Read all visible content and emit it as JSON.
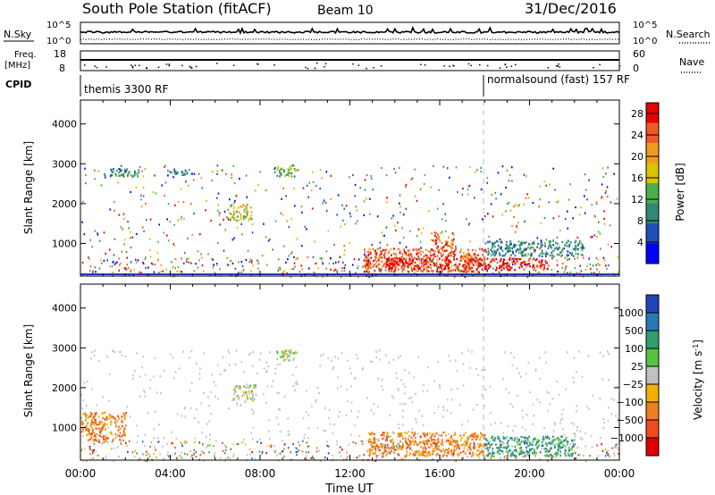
{
  "header": {
    "station": "South Pole Station (fitACF)",
    "beam": "Beam 10",
    "date": "31/Dec/2016"
  },
  "top_panels": {
    "nsky_label": "N.Sky",
    "nsearch_label": "N.Search",
    "nsky_ticks": [
      "10^5",
      "10^0"
    ],
    "nsearch_ticks": [
      "10^5",
      "10^0"
    ],
    "freq_label_1": "Freq.",
    "freq_label_2": "[MHz]",
    "freq_ticks": [
      "18",
      "8"
    ],
    "nave_label": "Nave",
    "nave_ticks": [
      "60",
      "0"
    ],
    "cpid_label": "CPID",
    "cpid_segments": [
      {
        "name": "themis 3300 RF",
        "start_hour": 0
      },
      {
        "name": "normalsound (fast) 157 RF",
        "start_hour": 18.1
      }
    ]
  },
  "chart_data": [
    {
      "type": "heatmap",
      "title": "",
      "xlabel": "Time UT",
      "ylabel": "Slant Range [km]",
      "xlim": [
        0,
        24
      ],
      "ylim": [
        180,
        4600
      ],
      "x_ticks": [
        "00:00",
        "04:00",
        "08:00",
        "12:00",
        "16:00",
        "20:00",
        "00:00"
      ],
      "y_ticks": [
        1000,
        2000,
        3000,
        4000
      ],
      "colorbar": {
        "label": "Power [dB]",
        "ticks": [
          4,
          8,
          12,
          16,
          20,
          24,
          28
        ],
        "range": [
          0,
          30
        ],
        "colors": [
          "#0000ff",
          "#1e4fb8",
          "#2f8a74",
          "#4cae4c",
          "#d9c400",
          "#f29a1f",
          "#f05a28",
          "#e60000"
        ]
      },
      "regions": [
        {
          "t0": 1.0,
          "t1": 2.6,
          "r0": 2700,
          "r1": 2900,
          "level": 2
        },
        {
          "t0": 3.8,
          "t1": 5.0,
          "r0": 2720,
          "r1": 2880,
          "level": 2
        },
        {
          "t0": 6.6,
          "t1": 7.6,
          "r0": 1600,
          "r1": 2000,
          "level": 4
        },
        {
          "t0": 8.6,
          "t1": 9.6,
          "r0": 2700,
          "r1": 3000,
          "level": 3
        },
        {
          "t0": 12.6,
          "t1": 18.0,
          "r0": 300,
          "r1": 900,
          "level": 6
        },
        {
          "t0": 13.6,
          "t1": 16.4,
          "r0": 380,
          "r1": 650,
          "level": 7
        },
        {
          "t0": 17.0,
          "t1": 20.8,
          "r0": 350,
          "r1": 650,
          "level": 7
        },
        {
          "t0": 15.6,
          "t1": 16.6,
          "r0": 900,
          "r1": 1300,
          "level": 6
        },
        {
          "t0": 18.0,
          "t1": 22.4,
          "r0": 700,
          "r1": 1100,
          "level": 2
        }
      ]
    },
    {
      "type": "heatmap",
      "title": "",
      "xlabel": "Time UT",
      "ylabel": "Slant Range [km]",
      "xlim": [
        0,
        24
      ],
      "ylim": [
        180,
        4600
      ],
      "x_ticks": [
        "00:00",
        "04:00",
        "08:00",
        "12:00",
        "16:00",
        "20:00",
        "00:00"
      ],
      "y_ticks": [
        1000,
        2000,
        3000,
        4000
      ],
      "colorbar": {
        "label": "Velocity [m s^-1]",
        "ticks": [
          "1000",
          "500",
          "100",
          "25",
          "−25",
          "−100",
          "−500",
          "−1000"
        ],
        "colors": [
          "#2244bb",
          "#2a77b4",
          "#2f9e6e",
          "#57c23f",
          "#c0c0c0",
          "#f0b000",
          "#f07f20",
          "#f04a20",
          "#e00000"
        ]
      },
      "regions": [
        {
          "t0": 0.0,
          "t1": 2.0,
          "r0": 700,
          "r1": 1400,
          "level": 6
        },
        {
          "t0": 6.8,
          "t1": 7.8,
          "r0": 1700,
          "r1": 2100,
          "level": 4
        },
        {
          "t0": 8.6,
          "t1": 9.6,
          "r0": 2700,
          "r1": 3000,
          "level": 4
        },
        {
          "t0": 12.8,
          "t1": 18.0,
          "r0": 300,
          "r1": 900,
          "level": 6
        },
        {
          "t0": 18.0,
          "t1": 22.0,
          "r0": 300,
          "r1": 800,
          "level": 2
        }
      ]
    }
  ]
}
